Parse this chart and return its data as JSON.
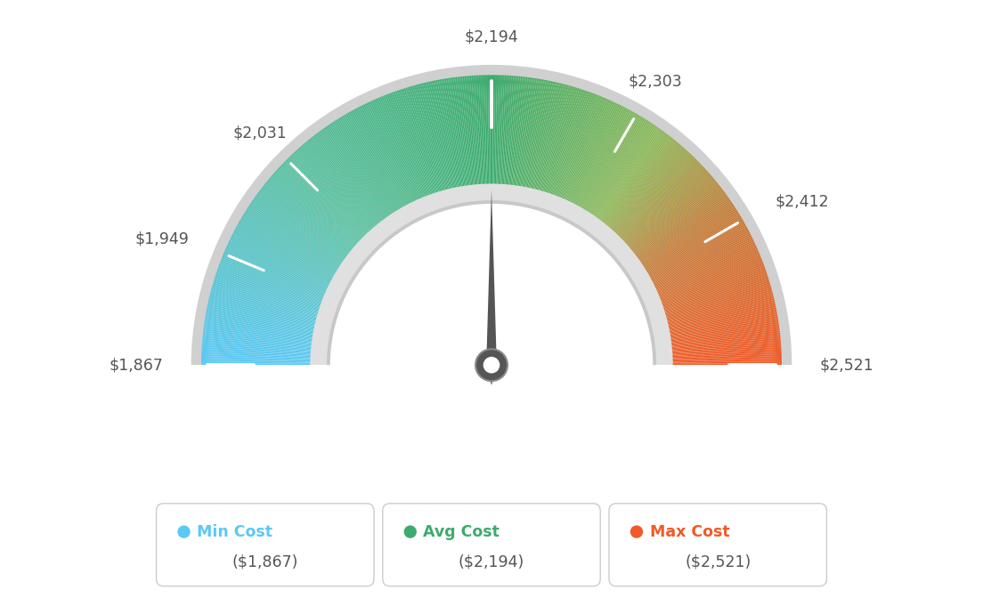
{
  "min_val": 1867,
  "max_val": 2521,
  "avg_val": 2194,
  "tick_labels": [
    "$1,867",
    "$1,949",
    "$2,031",
    "$2,194",
    "$2,303",
    "$2,412",
    "$2,521"
  ],
  "tick_values": [
    1867,
    1949,
    2031,
    2194,
    2303,
    2412,
    2521
  ],
  "legend_labels": [
    "Min Cost",
    "Avg Cost",
    "Max Cost"
  ],
  "legend_values": [
    "($1,867)",
    "($2,194)",
    "($2,521)"
  ],
  "legend_colors": [
    "#5bc8f5",
    "#3dab6e",
    "#f05a28"
  ],
  "bg_color": "#ffffff",
  "min_val_color": "#5bc8f5",
  "max_val_color": "#f05a28",
  "avg_val_color": "#3dab6e",
  "needle_value": 2194,
  "gauge_colors": [
    [
      0.0,
      "#5bc8f5"
    ],
    [
      0.25,
      "#5bbfa0"
    ],
    [
      0.5,
      "#3dab6e"
    ],
    [
      0.7,
      "#8db85a"
    ],
    [
      0.82,
      "#c47c3a"
    ],
    [
      1.0,
      "#f05a28"
    ]
  ],
  "outer_r": 1.0,
  "inner_r": 0.62,
  "border_r": 1.035,
  "inner_ring_r": 0.68,
  "n_segments": 500
}
